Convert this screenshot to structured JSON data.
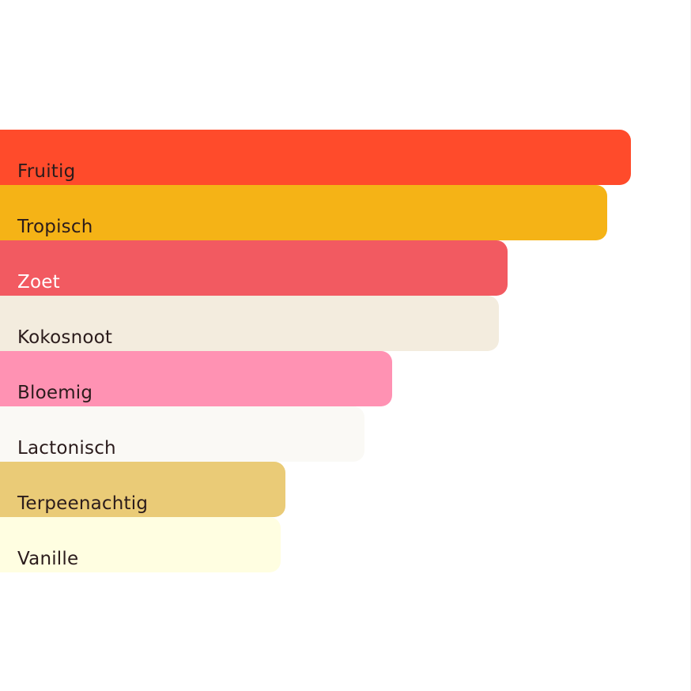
{
  "chart_data": {
    "type": "bar",
    "orientation": "horizontal",
    "categories": [
      "Fruitig",
      "Tropisch",
      "Zoet",
      "Kokosnoot",
      "Bloemig",
      "Lactonisch",
      "Terpeenachtig",
      "Vanille"
    ],
    "values": [
      100,
      96.3,
      80.5,
      79.1,
      62.1,
      57.8,
      45.2,
      44.5
    ],
    "colors": [
      "#FF4B2B",
      "#F5B316",
      "#F25A61",
      "#F3ECDE",
      "#FF92B3",
      "#FAF9F5",
      "#EACB77",
      "#FFFEE1"
    ],
    "label_colors": [
      "#2b1c1c",
      "#2b1c1c",
      "#ffffff",
      "#2b1c1c",
      "#2b1c1c",
      "#2b1c1c",
      "#2b1c1c",
      "#2b1c1c"
    ],
    "grid": false,
    "legend": "none"
  }
}
